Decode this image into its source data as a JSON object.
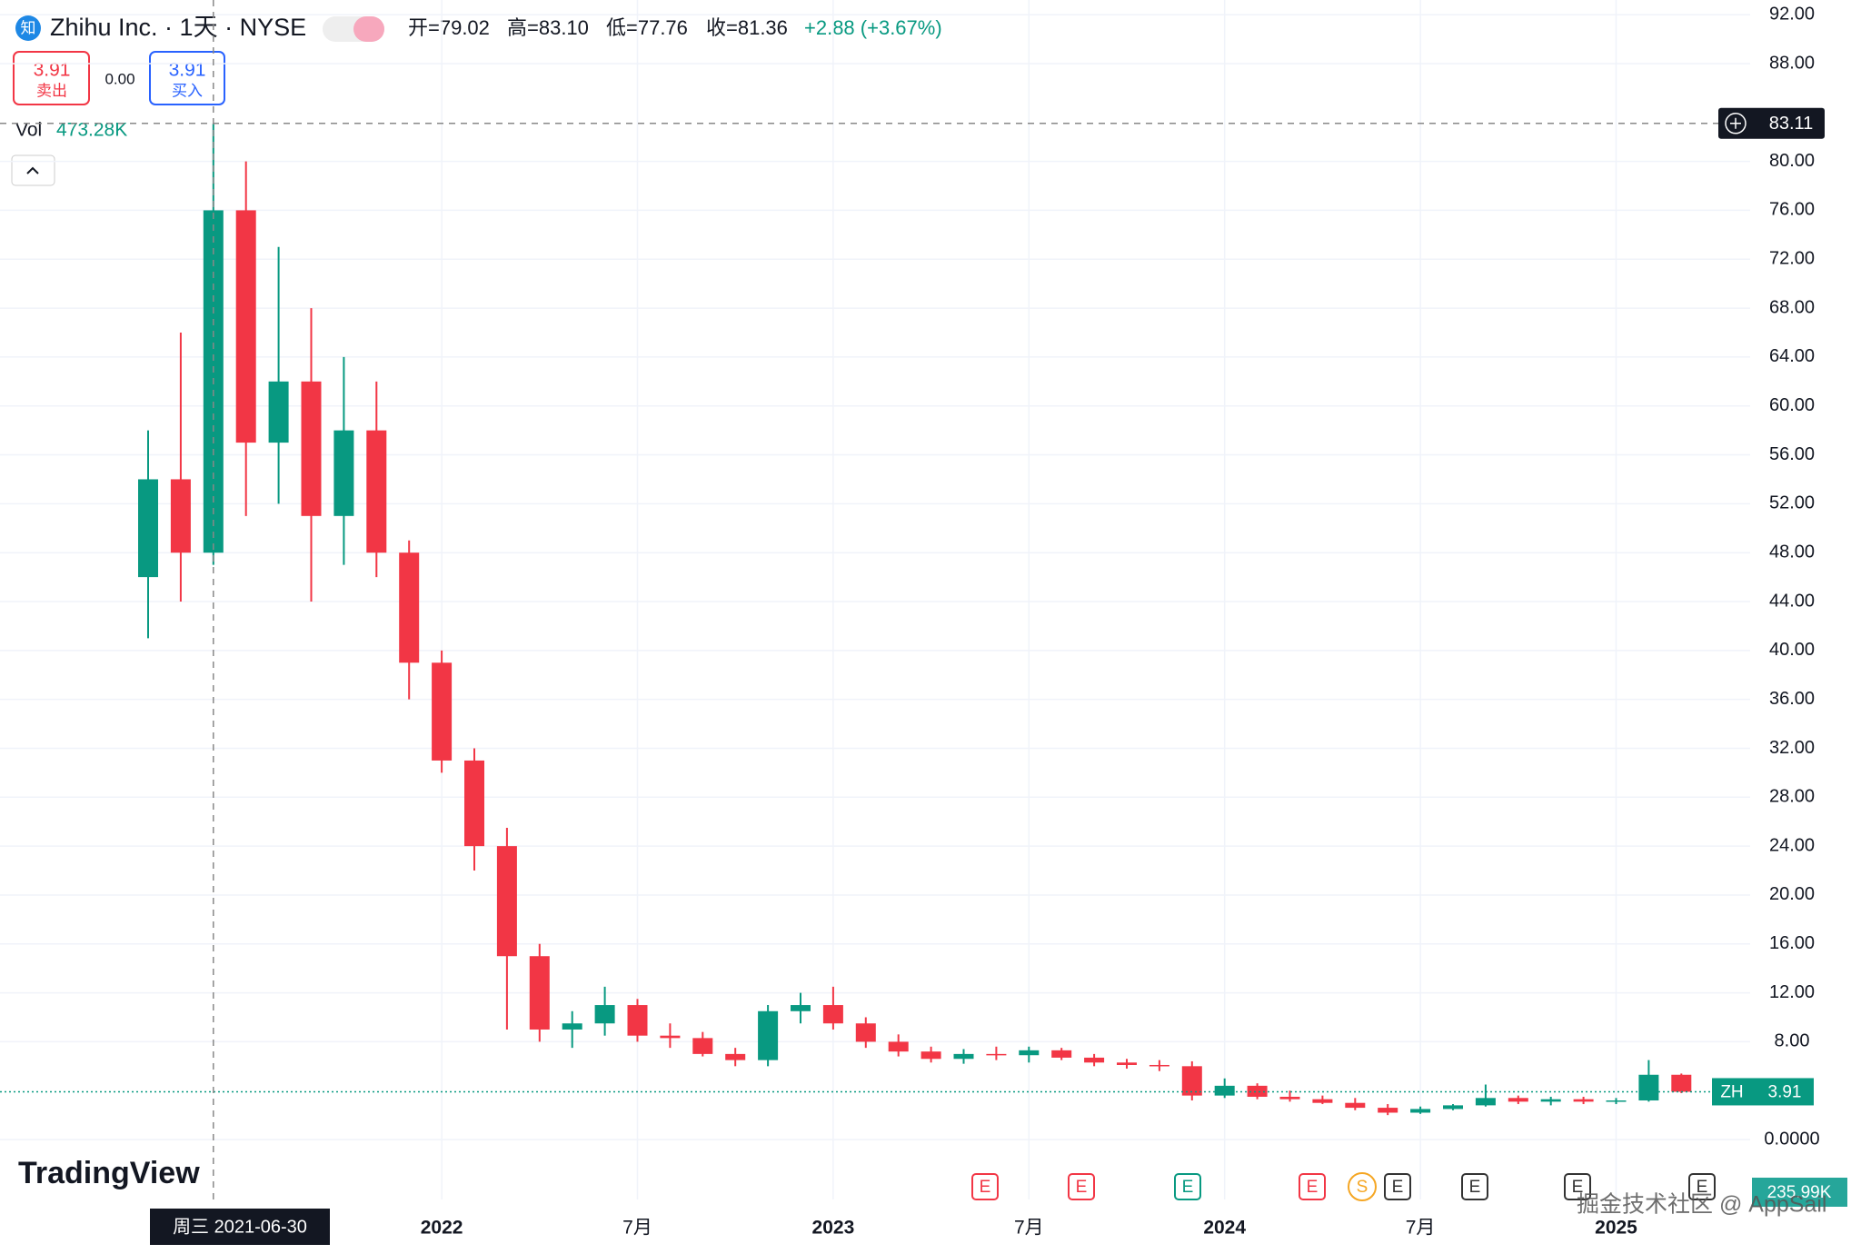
{
  "header": {
    "logo": "知",
    "symbol": "Zhihu Inc. · 1天 · NYSE",
    "open": "开=79.02",
    "high": "高=83.10",
    "low": "低=77.76",
    "close": "收=81.36",
    "change": "+2.88 (+3.67%)",
    "sell_price": "3.91",
    "sell_label": "卖出",
    "spread": "0.00",
    "buy_price": "3.91",
    "buy_label": "买入",
    "vol_label": "Vol",
    "vol_value": "473.28K",
    "vol_last": "235.99K",
    "brand": "TradingView",
    "watermark": "掘金技术社区 @ AppSail",
    "events": [
      "E",
      "E",
      "E",
      "E",
      "S",
      "E",
      "E",
      "E",
      "E"
    ]
  },
  "chart_data": {
    "type": "candlestick",
    "crosshair_date": "周三 2021-06-30",
    "crosshair_price": 83.11,
    "last_symbol": "ZH",
    "last_price": 3.91,
    "categories": [
      null,
      null,
      null,
      null,
      null,
      null,
      null,
      null,
      null,
      "2022",
      null,
      null,
      null,
      null,
      null,
      "7月",
      null,
      null,
      null,
      null,
      null,
      "2023",
      null,
      null,
      null,
      null,
      null,
      "7月",
      null,
      null,
      null,
      null,
      null,
      "2024",
      null,
      null,
      null,
      null,
      null,
      "7月",
      null,
      null,
      null,
      null,
      null,
      "2025",
      null,
      null
    ],
    "open": [
      46,
      54,
      48,
      76,
      57,
      62,
      51,
      58,
      48,
      39,
      31,
      24,
      15,
      9,
      9.5,
      11,
      8.5,
      8.3,
      7,
      6.5,
      10.5,
      11,
      9.5,
      8,
      7.2,
      6.6,
      7,
      6.9,
      7.3,
      6.7,
      6.3,
      6.1,
      6,
      3.6,
      4.4,
      3.5,
      3.3,
      3,
      2.6,
      2.2,
      2.5,
      2.8,
      3.4,
      3.1,
      3.3,
      3.1,
      3.2,
      5.3
    ],
    "high": [
      58,
      66,
      83.1,
      80,
      73,
      68,
      64,
      62,
      49,
      40,
      32,
      25.5,
      16,
      10.5,
      12.5,
      11.5,
      9.5,
      8.8,
      7.5,
      11,
      12,
      12.5,
      10,
      8.6,
      7.6,
      7.4,
      7.6,
      7.6,
      7.5,
      7,
      6.6,
      6.5,
      6.4,
      5,
      4.6,
      4,
      3.6,
      3.4,
      2.9,
      2.7,
      2.9,
      4.5,
      3.6,
      3.5,
      3.5,
      3.4,
      6.5,
      5.4
    ],
    "low": [
      41,
      44,
      47,
      51,
      52,
      44,
      47,
      46,
      36,
      30,
      22,
      9,
      8,
      7.5,
      8.5,
      8,
      7.5,
      6.8,
      6,
      6,
      9.5,
      9,
      7.5,
      6.8,
      6.3,
      6.2,
      6.5,
      6.3,
      6.5,
      6,
      5.8,
      5.6,
      3.2,
      3.4,
      3.3,
      3.1,
      2.9,
      2.4,
      2,
      2.1,
      2.4,
      2.7,
      2.9,
      2.8,
      2.9,
      2.9,
      3.1,
      3.8
    ],
    "close": [
      54,
      48,
      76,
      57,
      62,
      51,
      58,
      48,
      39,
      31,
      24,
      15,
      9,
      9.5,
      11,
      8.5,
      8.3,
      7,
      6.5,
      10.5,
      11,
      9.5,
      8,
      7.2,
      6.6,
      7,
      6.9,
      7.3,
      6.7,
      6.3,
      6.1,
      6,
      3.6,
      4.4,
      3.5,
      3.3,
      3,
      2.6,
      2.2,
      2.5,
      2.8,
      3.4,
      3.1,
      3.3,
      3.1,
      3.2,
      5.3,
      3.91
    ],
    "up_color": "#089981",
    "down_color": "#f23645",
    "ylim": [
      -4.9,
      93.2
    ],
    "yticks": [
      {
        "value": 0,
        "label": "0.0000"
      },
      {
        "value": 8,
        "label": "8.00"
      },
      {
        "value": 12,
        "label": "12.00"
      },
      {
        "value": 16,
        "label": "16.00"
      },
      {
        "value": 20,
        "label": "20.00"
      },
      {
        "value": 24,
        "label": "24.00"
      },
      {
        "value": 28,
        "label": "28.00"
      },
      {
        "value": 32,
        "label": "32.00"
      },
      {
        "value": 36,
        "label": "36.00"
      },
      {
        "value": 40,
        "label": "40.00"
      },
      {
        "value": 44,
        "label": "44.00"
      },
      {
        "value": 48,
        "label": "48.00"
      },
      {
        "value": 52,
        "label": "52.00"
      },
      {
        "value": 56,
        "label": "56.00"
      },
      {
        "value": 60,
        "label": "60.00"
      },
      {
        "value": 64,
        "label": "64.00"
      },
      {
        "value": 68,
        "label": "68.00"
      },
      {
        "value": 72,
        "label": "72.00"
      },
      {
        "value": 76,
        "label": "76.00"
      },
      {
        "value": 80,
        "label": "80.00"
      },
      {
        "value": 88,
        "label": "88.00"
      },
      {
        "value": 92,
        "label": "92.00"
      }
    ],
    "grid": true
  }
}
